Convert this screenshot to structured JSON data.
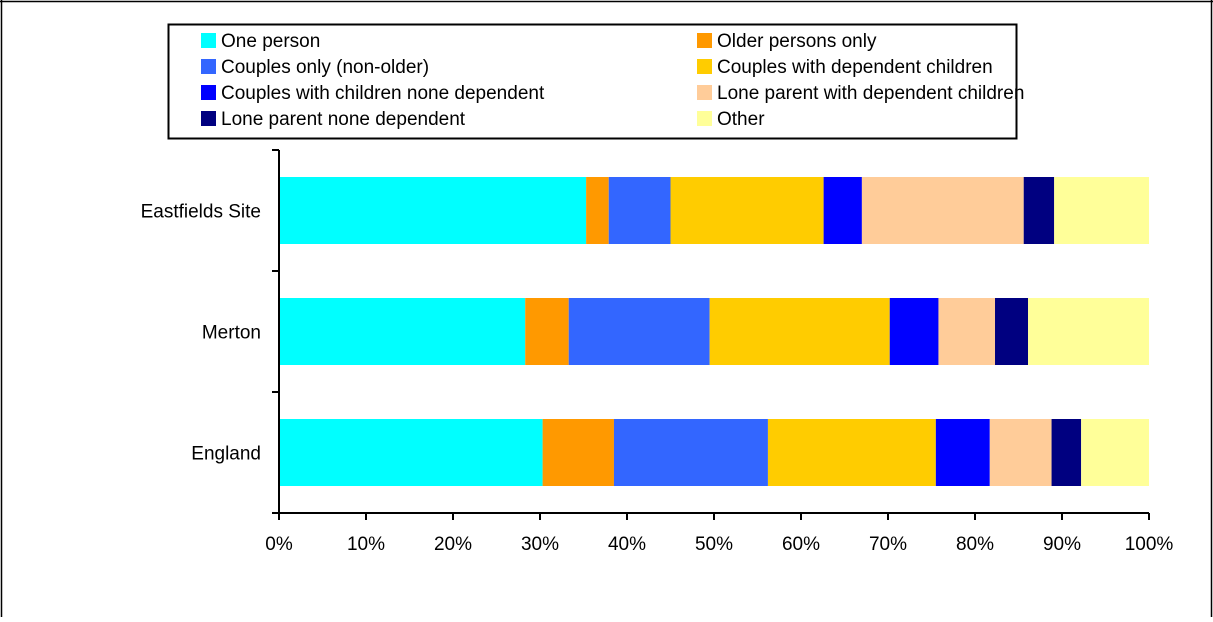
{
  "chart_data": {
    "type": "bar",
    "orientation": "horizontal",
    "stacked": "percent",
    "categories": [
      "Eastfields Site",
      "Merton",
      "England"
    ],
    "series": [
      {
        "name": "One person",
        "color": "#00FFFF",
        "values": [
          35.3,
          28.3,
          30.3
        ]
      },
      {
        "name": "Older persons only",
        "color": "#FF9900",
        "values": [
          2.6,
          5.0,
          8.2
        ]
      },
      {
        "name": "Couples only (non-older)",
        "color": "#3366FF",
        "values": [
          7.1,
          16.2,
          17.7
        ]
      },
      {
        "name": "Couples with dependent children",
        "color": "#FFCC00",
        "values": [
          17.6,
          20.7,
          19.3
        ]
      },
      {
        "name": "Couples with children none dependent",
        "color": "#0000FF",
        "values": [
          4.4,
          5.6,
          6.2
        ]
      },
      {
        "name": "Lone parent with dependent children",
        "color": "#FFCC99",
        "values": [
          18.6,
          6.5,
          7.1
        ]
      },
      {
        "name": "Lone parent none dependent",
        "color": "#000080",
        "values": [
          3.5,
          3.8,
          3.4
        ]
      },
      {
        "name": "Other",
        "color": "#FFFF99",
        "values": [
          10.9,
          13.9,
          7.8
        ]
      }
    ],
    "x_ticks": [
      "0%",
      "10%",
      "20%",
      "30%",
      "40%",
      "50%",
      "60%",
      "70%",
      "80%",
      "90%",
      "100%"
    ],
    "xlim": [
      0,
      100
    ],
    "grid": false,
    "legend_position": "top"
  }
}
